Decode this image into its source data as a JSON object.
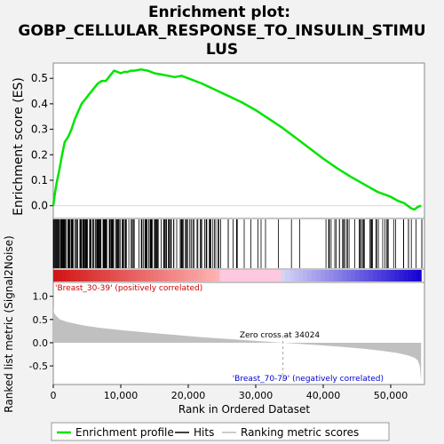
{
  "title_line1": "Enrichment plot:",
  "title_line2": "GOBP_CELLULAR_RESPONSE_TO_INSULIN_STIMU",
  "title_line3": "LUS",
  "top_ylabel": "Enrichment score (ES)",
  "bottom_ylabel": "Ranked list metric (Signal2Noise)",
  "xlabel": "Rank in Ordered Dataset",
  "pos_label": "'Breast_30-39' (positively correlated)",
  "neg_label": "'Breast_70-79' (negatively correlated)",
  "zero_cross_label": "Zero cross at 34024",
  "legend": {
    "enrichment": "Enrichment profile",
    "hits": "Hits",
    "ranking": "Ranking metric scores"
  },
  "colors": {
    "es_line": "#00e400",
    "pos_label": "#cc0000",
    "neg_label": "#0000cc",
    "metric_fill": "#c0c0c0"
  },
  "chart_data": {
    "type": "line",
    "x_range": [
      0,
      55000
    ],
    "n_genes": 55000,
    "zero_cross": 34024,
    "x_ticks": [
      0,
      10000,
      20000,
      30000,
      40000,
      50000
    ],
    "x_tick_labels": [
      "0",
      "10,000",
      "20,000",
      "30,000",
      "40,000",
      "50,000"
    ],
    "es": {
      "ylim": [
        -0.05,
        0.56
      ],
      "y_ticks": [
        0.0,
        0.1,
        0.2,
        0.3,
        0.4,
        0.5
      ],
      "y_tick_labels": [
        "0.0",
        "0.1",
        "0.2",
        "0.3",
        "0.4",
        "0.5"
      ],
      "x": [
        0,
        200,
        500,
        900,
        1300,
        1700,
        2200,
        2700,
        3200,
        3700,
        4200,
        4800,
        5400,
        6000,
        6600,
        7200,
        7800,
        8400,
        9000,
        9500,
        10000,
        10500,
        11000,
        11500,
        12000,
        13000,
        14000,
        15000,
        16000,
        17000,
        18000,
        19000,
        20000,
        22000,
        24000,
        26000,
        28000,
        30000,
        32000,
        34000,
        36000,
        38000,
        40000,
        42000,
        44000,
        46000,
        48000,
        50000,
        51000,
        52000,
        53000,
        53500,
        54000,
        54500
      ],
      "y": [
        0.0,
        0.04,
        0.09,
        0.14,
        0.2,
        0.25,
        0.27,
        0.3,
        0.34,
        0.37,
        0.4,
        0.42,
        0.44,
        0.46,
        0.48,
        0.49,
        0.49,
        0.51,
        0.53,
        0.525,
        0.52,
        0.525,
        0.525,
        0.53,
        0.53,
        0.535,
        0.53,
        0.52,
        0.515,
        0.51,
        0.505,
        0.51,
        0.5,
        0.48,
        0.455,
        0.43,
        0.405,
        0.375,
        0.34,
        0.305,
        0.265,
        0.225,
        0.185,
        0.148,
        0.115,
        0.085,
        0.055,
        0.035,
        0.02,
        0.01,
        -0.01,
        -0.015,
        -0.005,
        0.0
      ]
    },
    "metric": {
      "ylim": [
        -0.9,
        1.3
      ],
      "y_ticks": [
        -0.5,
        0.0,
        0.5,
        1.0
      ],
      "y_tick_labels": [
        "-0.5",
        "0.0",
        "0.5",
        "1.0"
      ],
      "x": [
        0,
        100,
        400,
        1000,
        2000,
        3500,
        5000,
        7000,
        10000,
        14000,
        18000,
        22000,
        26000,
        30000,
        34024,
        38000,
        42000,
        46000,
        49000,
        51000,
        52500,
        53500,
        54000,
        54300,
        54500
      ],
      "y": [
        0.78,
        0.65,
        0.58,
        0.5,
        0.45,
        0.4,
        0.36,
        0.32,
        0.27,
        0.22,
        0.17,
        0.12,
        0.08,
        0.04,
        0.0,
        -0.04,
        -0.08,
        -0.13,
        -0.18,
        -0.22,
        -0.27,
        -0.32,
        -0.38,
        -0.5,
        -0.82
      ]
    }
  }
}
